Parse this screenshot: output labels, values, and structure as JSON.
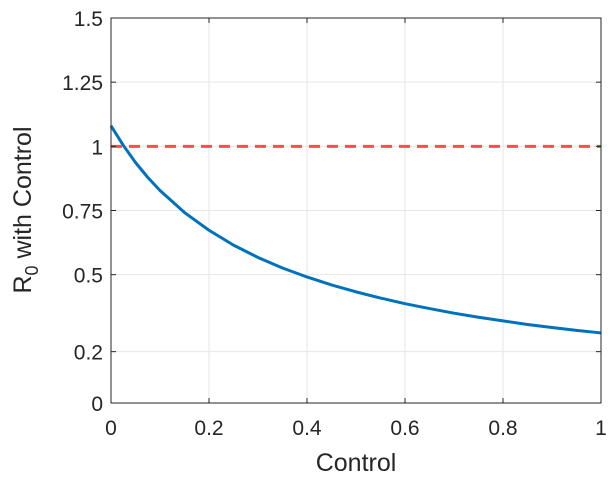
{
  "chart_data": {
    "type": "line",
    "xlabel": "Control",
    "ylabel": {
      "main": "R",
      "subscript": "0",
      "suffix": " with Control"
    },
    "xlim": [
      0,
      1
    ],
    "ylim": [
      0,
      1.5
    ],
    "xticks": [
      0,
      0.2,
      0.4,
      0.6,
      0.8,
      1
    ],
    "xtick_labels": [
      "0",
      "0.2",
      "0.4",
      "0.6",
      "0.8",
      "1"
    ],
    "yticks": [
      0,
      0.2,
      0.5,
      0.75,
      1,
      1.25,
      1.5
    ],
    "ytick_labels": [
      "0",
      "0.2",
      "0.5",
      "0.75",
      "1",
      "1.25",
      "1.5"
    ],
    "grid": true,
    "series": [
      {
        "color": "#0072bd",
        "style": "solid",
        "x": [
          0,
          0.025,
          0.05,
          0.075,
          0.1,
          0.15,
          0.2,
          0.25,
          0.3,
          0.35,
          0.4,
          0.45,
          0.5,
          0.55,
          0.6,
          0.65,
          0.7,
          0.75,
          0.8,
          0.85,
          0.9,
          0.95,
          1.0
        ],
        "y": [
          1.08,
          1.004,
          0.937,
          0.879,
          0.828,
          0.742,
          0.673,
          0.615,
          0.567,
          0.526,
          0.491,
          0.46,
          0.433,
          0.409,
          0.387,
          0.368,
          0.35,
          0.334,
          0.32,
          0.306,
          0.294,
          0.283,
          0.273
        ]
      },
      {
        "color": "#ff4c4c",
        "style": "dashed",
        "x": [
          0,
          1
        ],
        "y": [
          1,
          1
        ]
      }
    ]
  }
}
